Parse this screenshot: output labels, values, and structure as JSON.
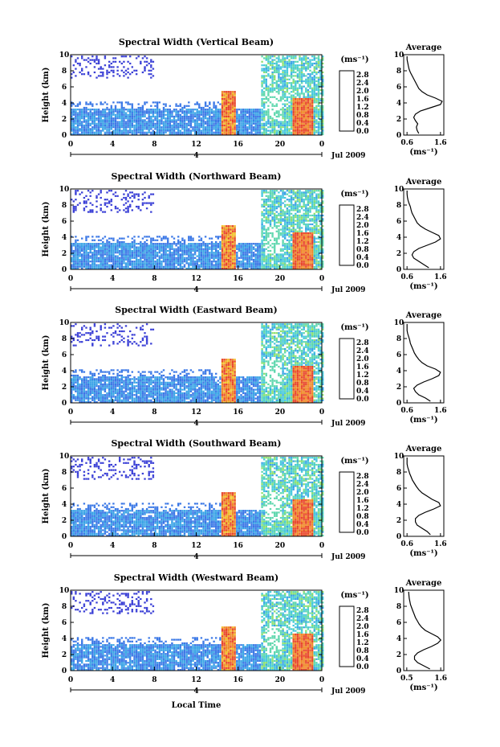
{
  "figure": {
    "xlabel_bottom": "Local Time",
    "date_label": "Jul 2009",
    "day_label": "4"
  },
  "colors": {
    "colorbar": [
      "#303090",
      "#2a3ad8",
      "#2f6bea",
      "#2d9ae8",
      "#31c0e0",
      "#3ed6b8",
      "#5fdc7e",
      "#9ae04c",
      "#d7dd33",
      "#f2b52c",
      "#f07f2a",
      "#e8452a"
    ],
    "radar_palette": [
      "#3a3fd6",
      "#3b78e6",
      "#3aa3e6",
      "#46c9dc",
      "#5fd7ae",
      "#8ee06f",
      "#cde23d",
      "#f2c22b",
      "#f08a2a",
      "#e8472a"
    ]
  },
  "chart_data": [
    {
      "type": "heatmap",
      "title": "Spectral Width (Vertical Beam)",
      "ylabel": "Height (km)",
      "xlim": [
        0,
        24
      ],
      "ylim": [
        0,
        10
      ],
      "xticks": [
        "0",
        "4",
        "8",
        "12",
        "16",
        "20",
        "0"
      ],
      "yticks": [
        "0",
        "2",
        "4",
        "6",
        "8",
        "10"
      ],
      "colorbar": {
        "unit": "(ms⁻¹)",
        "ticks": [
          "0.0",
          "0.4",
          "0.8",
          "1.2",
          "1.6",
          "2.0",
          "2.4",
          "2.8"
        ],
        "range": [
          0.0,
          3.0
        ]
      },
      "average_profile": {
        "title": "Average",
        "xlabel": "(ms⁻¹)",
        "xticks": [
          "0.6",
          "1.6"
        ],
        "xlim": [
          0.5,
          1.7
        ],
        "ylim": [
          0,
          10
        ],
        "yticks": [
          "0",
          "2",
          "4",
          "6",
          "8",
          "10"
        ],
        "height": [
          0.2,
          0.6,
          1.0,
          1.4,
          1.8,
          2.2,
          2.6,
          3.0,
          3.4,
          3.8,
          4.2,
          4.6,
          5.0,
          5.4,
          5.8,
          6.2,
          6.6,
          7.0,
          7.4,
          7.8,
          8.2,
          8.6,
          9.0,
          9.4,
          9.8
        ],
        "width": [
          0.95,
          0.9,
          0.88,
          0.92,
          0.85,
          0.8,
          0.85,
          1.0,
          1.3,
          1.6,
          1.65,
          1.45,
          1.2,
          1.05,
          0.95,
          0.9,
          0.85,
          0.8,
          0.75,
          0.7,
          0.66,
          0.64,
          0.62,
          0.6,
          0.6
        ]
      }
    },
    {
      "type": "heatmap",
      "title": "Spectral Width (Northward Beam)",
      "ylabel": "Height (km)",
      "xlim": [
        0,
        24
      ],
      "ylim": [
        0,
        10
      ],
      "xticks": [
        "0",
        "4",
        "8",
        "12",
        "16",
        "20",
        "0"
      ],
      "yticks": [
        "0",
        "2",
        "4",
        "6",
        "8",
        "10"
      ],
      "colorbar": {
        "unit": "(ms⁻¹)",
        "ticks": [
          "0.0",
          "0.4",
          "0.8",
          "1.2",
          "1.6",
          "2.0",
          "2.4",
          "2.8"
        ],
        "range": [
          0.0,
          3.0
        ]
      },
      "average_profile": {
        "title": "Average",
        "xlabel": "(ms⁻¹)",
        "xticks": [
          "0.6",
          "1.6"
        ],
        "xlim": [
          0.5,
          1.7
        ],
        "ylim": [
          0,
          10
        ],
        "yticks": [
          "0",
          "2",
          "4",
          "6",
          "8",
          "10"
        ],
        "height": [
          0.2,
          0.6,
          1.0,
          1.4,
          1.8,
          2.2,
          2.6,
          3.0,
          3.4,
          3.8,
          4.2,
          4.6,
          5.0,
          5.4,
          5.8,
          6.2,
          6.6,
          7.0,
          7.4,
          7.8,
          8.2,
          8.6,
          9.0,
          9.4,
          9.8
        ],
        "width": [
          1.25,
          1.1,
          0.95,
          0.8,
          0.75,
          0.8,
          0.95,
          1.2,
          1.45,
          1.6,
          1.55,
          1.35,
          1.15,
          1.0,
          0.9,
          0.85,
          0.8,
          0.75,
          0.72,
          0.7,
          0.66,
          0.63,
          0.61,
          0.6,
          0.6
        ]
      }
    },
    {
      "type": "heatmap",
      "title": "Spectral Width (Eastward Beam)",
      "ylabel": "Height (km)",
      "xlim": [
        0,
        24
      ],
      "ylim": [
        0,
        10
      ],
      "xticks": [
        "0",
        "4",
        "8",
        "12",
        "16",
        "20",
        "0"
      ],
      "yticks": [
        "0",
        "2",
        "4",
        "6",
        "8",
        "10"
      ],
      "colorbar": {
        "unit": "(ms⁻¹)",
        "ticks": [
          "0.0",
          "0.4",
          "0.8",
          "1.2",
          "1.6",
          "2.0",
          "2.4",
          "2.8"
        ],
        "range": [
          0.0,
          3.0
        ]
      },
      "average_profile": {
        "title": "Average",
        "xlabel": "(ms⁻¹)",
        "xticks": [
          "0.6",
          "1.6"
        ],
        "xlim": [
          0.5,
          1.7
        ],
        "ylim": [
          0,
          10
        ],
        "yticks": [
          "0",
          "2",
          "4",
          "6",
          "8",
          "10"
        ],
        "height": [
          0.2,
          0.6,
          1.0,
          1.4,
          1.8,
          2.2,
          2.6,
          3.0,
          3.4,
          3.8,
          4.2,
          4.6,
          5.0,
          5.4,
          5.8,
          6.2,
          6.6,
          7.0,
          7.4,
          7.8,
          8.2,
          8.6,
          9.0,
          9.4,
          9.8
        ],
        "width": [
          1.3,
          1.15,
          0.95,
          0.85,
          0.8,
          0.9,
          1.1,
          1.35,
          1.55,
          1.6,
          1.45,
          1.2,
          1.05,
          0.95,
          0.88,
          0.82,
          0.78,
          0.74,
          0.7,
          0.68,
          0.65,
          0.62,
          0.6,
          0.6,
          0.6
        ]
      }
    },
    {
      "type": "heatmap",
      "title": "Spectral Width (Southward Beam)",
      "ylabel": "Height (km)",
      "xlim": [
        0,
        24
      ],
      "ylim": [
        0,
        10
      ],
      "xticks": [
        "0",
        "4",
        "8",
        "12",
        "16",
        "20",
        "0"
      ],
      "yticks": [
        "0",
        "2",
        "4",
        "6",
        "8",
        "10"
      ],
      "colorbar": {
        "unit": "(ms⁻¹)",
        "ticks": [
          "0.0",
          "0.4",
          "0.8",
          "1.2",
          "1.6",
          "2.0",
          "2.4",
          "2.8"
        ],
        "range": [
          0.0,
          3.0
        ]
      },
      "average_profile": {
        "title": "Average",
        "xlabel": "(ms⁻¹)",
        "xticks": [
          "0.6",
          "1.6"
        ],
        "xlim": [
          0.5,
          1.7
        ],
        "ylim": [
          0,
          10
        ],
        "yticks": [
          "0",
          "2",
          "4",
          "6",
          "8",
          "10"
        ],
        "height": [
          0.2,
          0.6,
          1.0,
          1.4,
          1.8,
          2.2,
          2.6,
          3.0,
          3.4,
          3.8,
          4.2,
          4.6,
          5.0,
          5.4,
          5.8,
          6.2,
          6.6,
          7.0,
          7.4,
          7.8,
          8.2,
          8.6,
          9.0,
          9.4,
          9.8
        ],
        "width": [
          1.3,
          1.2,
          1.05,
          0.9,
          0.85,
          0.85,
          0.95,
          1.15,
          1.4,
          1.6,
          1.55,
          1.35,
          1.2,
          1.05,
          0.95,
          0.88,
          0.82,
          0.76,
          0.72,
          0.68,
          0.65,
          0.62,
          0.6,
          0.6,
          0.6
        ]
      }
    },
    {
      "type": "heatmap",
      "title": "Spectral Width (Westward Beam)",
      "ylabel": "Height (km)",
      "xlim": [
        0,
        24
      ],
      "ylim": [
        0,
        10
      ],
      "xticks": [
        "0",
        "4",
        "8",
        "12",
        "16",
        "20",
        "0"
      ],
      "yticks": [
        "0",
        "2",
        "4",
        "6",
        "8",
        "10"
      ],
      "colorbar": {
        "unit": "(ms⁻¹)",
        "ticks": [
          "0.0",
          "0.4",
          "0.8",
          "1.2",
          "1.6",
          "2.0",
          "2.4",
          "2.8"
        ],
        "range": [
          0.0,
          3.0
        ]
      },
      "average_profile": {
        "title": "Average",
        "xlabel": "(ms⁻¹)",
        "xticks": [
          "0.5",
          "1.6"
        ],
        "xlim": [
          0.4,
          1.7
        ],
        "ylim": [
          0,
          10
        ],
        "yticks": [
          "0",
          "2",
          "4",
          "6",
          "8",
          "10"
        ],
        "height": [
          0.2,
          0.6,
          1.0,
          1.4,
          1.8,
          2.2,
          2.6,
          3.0,
          3.4,
          3.8,
          4.2,
          4.6,
          5.0,
          5.4,
          5.8,
          6.2,
          6.6,
          7.0,
          7.4,
          7.8,
          8.2,
          8.6,
          9.0,
          9.4,
          9.8
        ],
        "width": [
          1.25,
          1.05,
          0.85,
          0.75,
          0.75,
          0.85,
          1.05,
          1.3,
          1.5,
          1.6,
          1.5,
          1.3,
          1.1,
          0.98,
          0.9,
          0.84,
          0.78,
          0.74,
          0.7,
          0.66,
          0.62,
          0.6,
          0.58,
          0.57,
          0.56
        ]
      }
    }
  ]
}
